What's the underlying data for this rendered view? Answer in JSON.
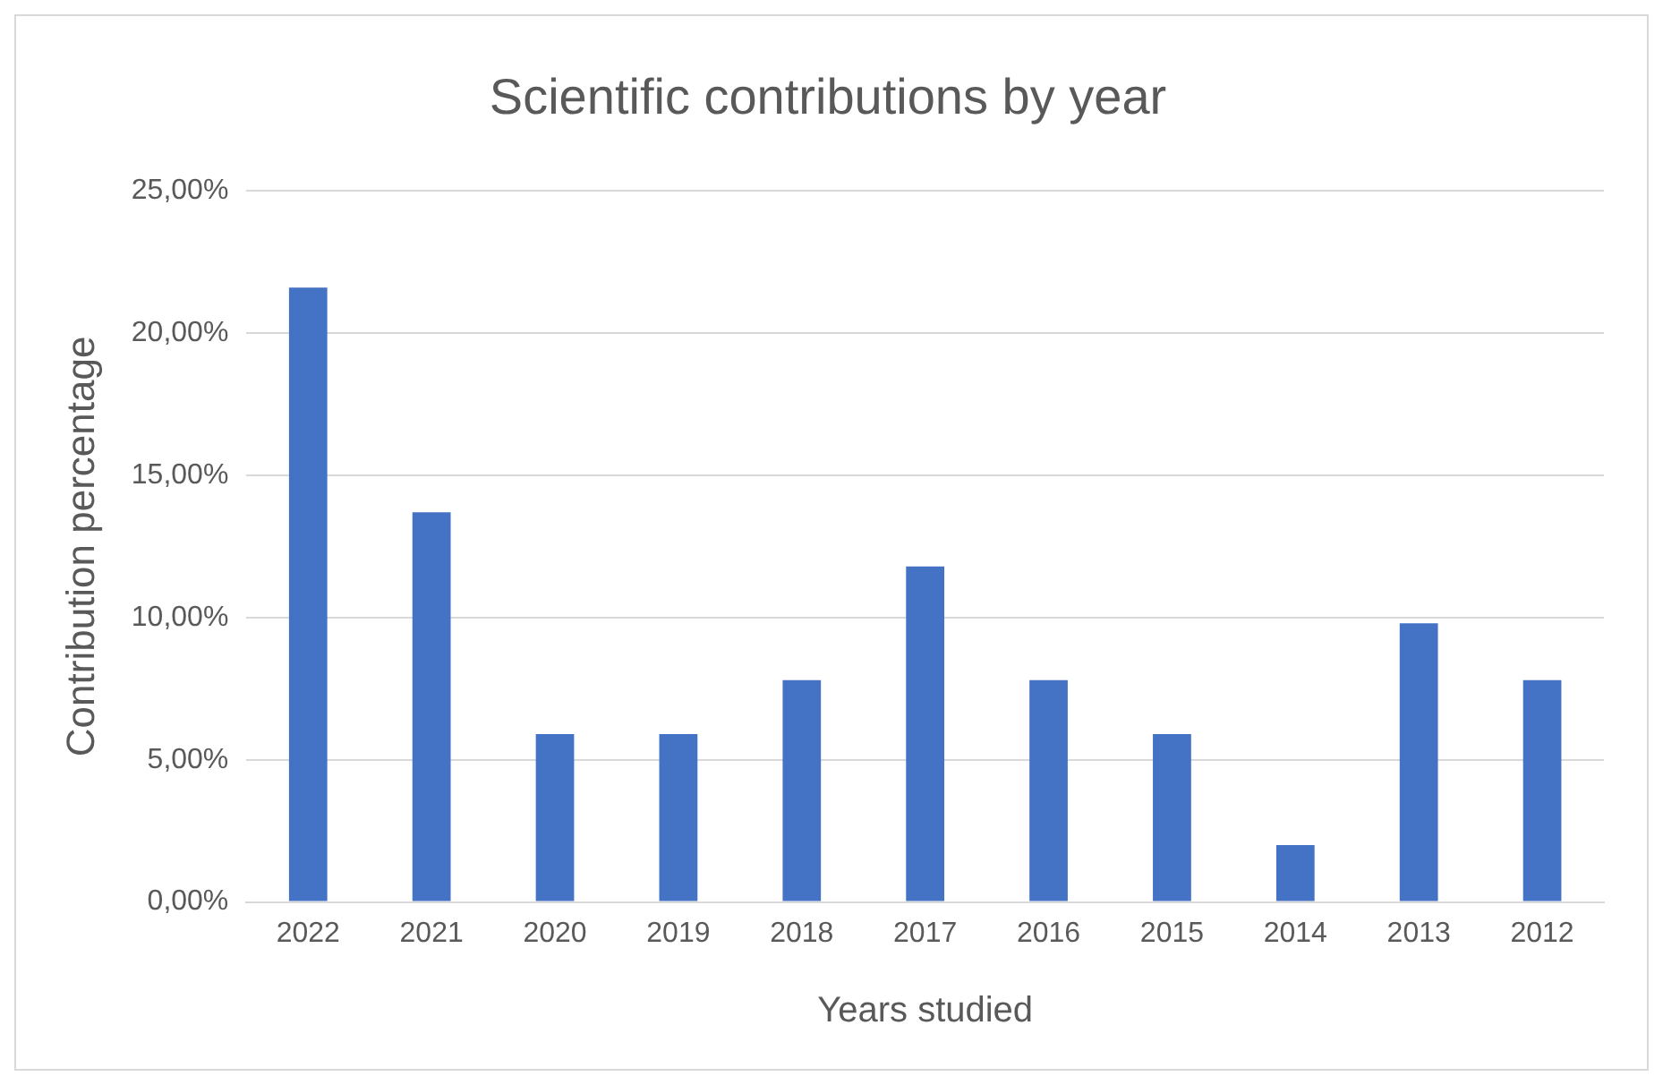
{
  "chart_data": {
    "type": "bar",
    "title": "Scientific contributions by year",
    "xlabel": "Years studied",
    "ylabel": "Contribution percentage",
    "categories": [
      "2022",
      "2021",
      "2020",
      "2019",
      "2018",
      "2017",
      "2016",
      "2015",
      "2014",
      "2013",
      "2012"
    ],
    "values": [
      21.6,
      13.7,
      5.9,
      5.9,
      7.8,
      11.8,
      7.8,
      5.9,
      2.0,
      9.8,
      7.8
    ],
    "color": "#4472c4",
    "ylim": [
      0,
      25
    ],
    "yticks": [
      {
        "value": 0,
        "label": "0,00%"
      },
      {
        "value": 5,
        "label": "5,00%"
      },
      {
        "value": 10,
        "label": "10,00%"
      },
      {
        "value": 15,
        "label": "15,00%"
      },
      {
        "value": 20,
        "label": "20,00%"
      },
      {
        "value": 25,
        "label": "25,00%"
      }
    ],
    "grid": "y",
    "legend": false
  }
}
